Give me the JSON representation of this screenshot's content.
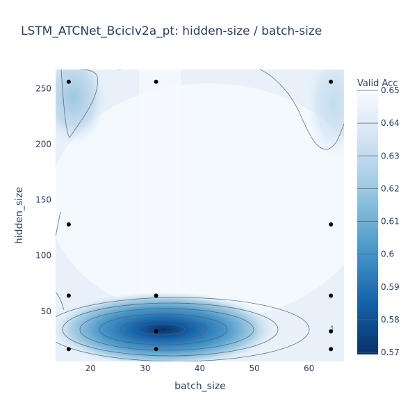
{
  "chart_data": {
    "type": "contour",
    "title": "LSTM_ATCNet_BcicIv2a_pt: hidden-size / batch-size",
    "xlabel": "batch_size",
    "ylabel": "hidden_size",
    "xlim": [
      13.6,
      66.4
    ],
    "ylim": [
      5.0,
      267.0
    ],
    "xticks": [
      20,
      30,
      40,
      50,
      60
    ],
    "yticks": [
      50,
      100,
      150,
      200,
      250
    ],
    "colorbar": {
      "title": "Valid Acc",
      "range": [
        0.57,
        0.65
      ],
      "ticks": [
        "0.57",
        "0.58",
        "0.59",
        "0.6",
        "0.61",
        "0.62",
        "0.63",
        "0.64",
        "0.65"
      ],
      "colorscale": [
        "#08306b",
        "#1664ab",
        "#4a98c9",
        "#94c4df",
        "#d0e1f2",
        "#f7fbff"
      ]
    },
    "points": [
      {
        "x": 16,
        "y": 256
      },
      {
        "x": 32,
        "y": 256
      },
      {
        "x": 64,
        "y": 256
      },
      {
        "x": 16,
        "y": 128
      },
      {
        "x": 64,
        "y": 128
      },
      {
        "x": 16,
        "y": 64
      },
      {
        "x": 32,
        "y": 64
      },
      {
        "x": 64,
        "y": 64
      },
      {
        "x": 32,
        "y": 32
      },
      {
        "x": 64,
        "y": 32
      },
      {
        "x": 16,
        "y": 16
      },
      {
        "x": 32,
        "y": 16
      },
      {
        "x": 64,
        "y": 16
      }
    ]
  }
}
